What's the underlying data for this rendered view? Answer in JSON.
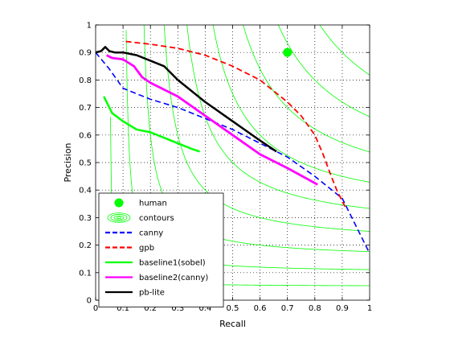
{
  "chart_data": {
    "type": "line",
    "xlabel": "Recall",
    "ylabel": "Precision",
    "xlim": [
      0,
      1
    ],
    "ylim": [
      0,
      1
    ],
    "grid": true,
    "legend_position": "bottom-left",
    "x_ticks": [
      "0",
      "0.1",
      "0.2",
      "0.3",
      "0.4",
      "0.5",
      "0.6",
      "0.7",
      "0.8",
      "0.9",
      "1"
    ],
    "y_ticks": [
      "0",
      "0.1",
      "0.2",
      "0.3",
      "0.4",
      "0.5",
      "0.6",
      "0.7",
      "0.8",
      "0.9",
      "1"
    ],
    "contour_levels": [
      0.1,
      0.2,
      0.3,
      0.4,
      0.5,
      0.6,
      0.7,
      0.8,
      0.9
    ],
    "human": {
      "x": 0.7,
      "y": 0.9,
      "color": "#00ff00"
    },
    "series": [
      {
        "name": "canny",
        "color": "#0000ff",
        "style": "dashed",
        "width": 1.6,
        "points": [
          [
            0.0,
            0.9
          ],
          [
            0.05,
            0.84
          ],
          [
            0.1,
            0.77
          ],
          [
            0.2,
            0.73
          ],
          [
            0.3,
            0.7
          ],
          [
            0.4,
            0.66
          ],
          [
            0.5,
            0.62
          ],
          [
            0.6,
            0.57
          ],
          [
            0.7,
            0.52
          ],
          [
            0.8,
            0.45
          ],
          [
            0.9,
            0.37
          ],
          [
            0.95,
            0.27
          ],
          [
            1.0,
            0.17
          ]
        ]
      },
      {
        "name": "gpb",
        "color": "#ff0000",
        "style": "dashed",
        "width": 1.8,
        "points": [
          [
            0.11,
            0.94
          ],
          [
            0.2,
            0.93
          ],
          [
            0.3,
            0.915
          ],
          [
            0.4,
            0.89
          ],
          [
            0.5,
            0.85
          ],
          [
            0.6,
            0.8
          ],
          [
            0.7,
            0.72
          ],
          [
            0.75,
            0.67
          ],
          [
            0.8,
            0.6
          ],
          [
            0.83,
            0.53
          ],
          [
            0.86,
            0.45
          ],
          [
            0.88,
            0.4
          ],
          [
            0.91,
            0.34
          ]
        ]
      },
      {
        "name": "baseline1(sobel)",
        "color": "#00ff00",
        "style": "solid",
        "width": 2.5,
        "points": [
          [
            0.03,
            0.74
          ],
          [
            0.06,
            0.68
          ],
          [
            0.1,
            0.65
          ],
          [
            0.15,
            0.62
          ],
          [
            0.2,
            0.61
          ],
          [
            0.25,
            0.59
          ],
          [
            0.3,
            0.57
          ],
          [
            0.35,
            0.55
          ],
          [
            0.38,
            0.54
          ]
        ]
      },
      {
        "name": "baseline2(canny)",
        "color": "#ff00ff",
        "style": "solid",
        "width": 2.8,
        "points": [
          [
            0.04,
            0.89
          ],
          [
            0.06,
            0.88
          ],
          [
            0.1,
            0.875
          ],
          [
            0.14,
            0.85
          ],
          [
            0.17,
            0.81
          ],
          [
            0.2,
            0.79
          ],
          [
            0.3,
            0.74
          ],
          [
            0.4,
            0.67
          ],
          [
            0.5,
            0.6
          ],
          [
            0.6,
            0.53
          ],
          [
            0.7,
            0.48
          ],
          [
            0.81,
            0.42
          ]
        ]
      },
      {
        "name": "pb-lite",
        "color": "#000000",
        "style": "solid",
        "width": 2.5,
        "points": [
          [
            0.0,
            0.9
          ],
          [
            0.02,
            0.905
          ],
          [
            0.035,
            0.92
          ],
          [
            0.05,
            0.905
          ],
          [
            0.07,
            0.9
          ],
          [
            0.1,
            0.9
          ],
          [
            0.15,
            0.89
          ],
          [
            0.2,
            0.87
          ],
          [
            0.25,
            0.85
          ],
          [
            0.3,
            0.8
          ],
          [
            0.4,
            0.72
          ],
          [
            0.5,
            0.65
          ],
          [
            0.6,
            0.58
          ],
          [
            0.66,
            0.54
          ]
        ]
      }
    ],
    "legend": [
      {
        "label": "human",
        "kind": "marker",
        "color": "#00ff00"
      },
      {
        "label": "contours",
        "kind": "contours",
        "color": "#00ff00"
      },
      {
        "label": "canny",
        "kind": "line",
        "color": "#0000ff",
        "style": "dashed"
      },
      {
        "label": "gpb",
        "kind": "line",
        "color": "#ff0000",
        "style": "dashed"
      },
      {
        "label": "baseline1(sobel)",
        "kind": "line",
        "color": "#00ff00",
        "style": "solid"
      },
      {
        "label": "baseline2(canny)",
        "kind": "line",
        "color": "#ff00ff",
        "style": "solid"
      },
      {
        "label": "pb-lite",
        "kind": "line",
        "color": "#000000",
        "style": "solid"
      }
    ]
  }
}
